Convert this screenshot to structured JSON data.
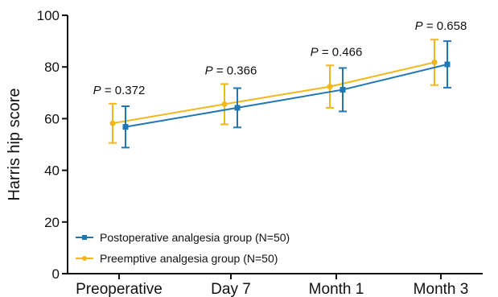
{
  "chart_data": {
    "type": "line",
    "title": "",
    "xlabel": "",
    "ylabel": "Harris hip score",
    "ylim": [
      0,
      100
    ],
    "yticks": [
      0,
      20,
      40,
      60,
      80,
      100
    ],
    "categories": [
      "Preoperative",
      "Day 7",
      "Month 1",
      "Month 3"
    ],
    "series": [
      {
        "name": "Postoperative analgesia group (N=50)",
        "color": "#1f77b4",
        "marker": "square",
        "values": [
          56.8,
          64.2,
          71.2,
          81.0
        ],
        "error": [
          8.0,
          7.6,
          8.4,
          9.0
        ]
      },
      {
        "name": "Preemptive analgesia group (N=50)",
        "color": "#f2b71a",
        "marker": "circle",
        "values": [
          58.2,
          65.6,
          72.4,
          81.8
        ],
        "error": [
          7.6,
          7.8,
          8.2,
          8.8
        ]
      }
    ],
    "annotations": [
      {
        "category": "Preoperative",
        "label": "P",
        "text": " = 0.372"
      },
      {
        "category": "Day 7",
        "label": "P",
        "text": " = 0.366"
      },
      {
        "category": "Month 1",
        "label": "P",
        "text": " = 0.466"
      },
      {
        "category": "Month 3",
        "label": "P",
        "text": " = 0.658"
      }
    ],
    "legend": "bottom-left",
    "grid": false
  }
}
